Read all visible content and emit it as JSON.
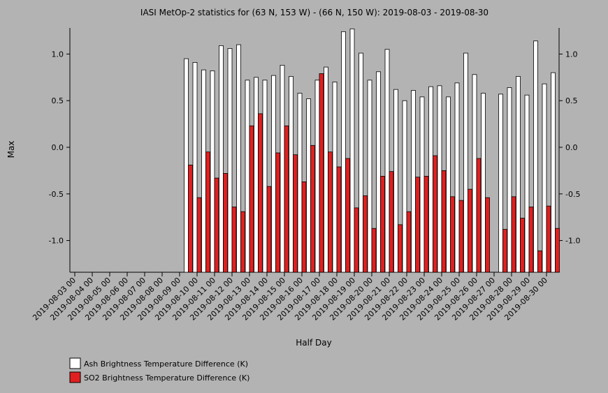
{
  "chart_data": {
    "type": "bar",
    "title": "IASI MetOp-2 statistics for (63 N, 153 W) - (66 N, 150 W): 2019-08-03 - 2019-08-30",
    "x_label": "Half Day",
    "y_label": "Max",
    "categories": [
      "2019-08-03 00",
      null,
      "2019-08-04 00",
      null,
      "2019-08-05 00",
      null,
      "2019-08-06 00",
      null,
      "2019-08-07 00",
      null,
      "2019-08-08 00",
      null,
      "2019-08-09 00",
      null,
      "2019-08-10 00",
      null,
      "2019-08-11 00",
      null,
      "2019-08-12 00",
      null,
      "2019-08-13 00",
      null,
      "2019-08-14 00",
      null,
      "2019-08-15 00",
      null,
      "2019-08-16 00",
      null,
      "2019-08-17 00",
      null,
      "2019-08-18 00",
      null,
      "2019-08-19 00",
      null,
      "2019-08-20 00",
      null,
      "2019-08-21 00",
      null,
      "2019-08-22 00",
      null,
      "2019-08-23 00",
      null,
      "2019-08-24 00",
      null,
      "2019-08-25 00",
      null,
      "2019-08-26 00",
      null,
      "2019-08-27 00",
      null,
      "2019-08-28 00",
      null,
      "2019-08-29 00",
      null,
      "2019-08-30 00",
      null
    ],
    "series": [
      {
        "name": "Ash Brightness Temperature Difference (K)",
        "color": "#ffffff",
        "values": [
          null,
          null,
          null,
          null,
          null,
          null,
          null,
          null,
          null,
          null,
          null,
          null,
          null,
          0.95,
          0.91,
          0.83,
          0.82,
          1.09,
          1.06,
          1.1,
          0.72,
          0.75,
          0.72,
          0.77,
          0.88,
          0.76,
          0.58,
          0.52,
          0.72,
          0.86,
          0.7,
          1.24,
          1.27,
          1.01,
          0.72,
          0.81,
          1.05,
          0.62,
          0.5,
          0.61,
          0.54,
          0.65,
          0.66,
          0.54,
          0.69,
          1.01,
          0.78,
          0.58,
          null,
          0.57,
          0.64,
          0.76,
          0.56,
          1.14,
          0.68,
          0.8
        ]
      },
      {
        "name": "SO2 Brightness Temperature Difference (K)",
        "color": "#e02020",
        "values": [
          null,
          null,
          null,
          null,
          null,
          null,
          null,
          null,
          null,
          null,
          null,
          null,
          null,
          -0.19,
          -0.54,
          -0.05,
          -0.33,
          -0.28,
          -0.64,
          -0.69,
          0.23,
          0.36,
          -0.42,
          -0.06,
          0.23,
          -0.08,
          -0.37,
          0.02,
          0.79,
          -0.05,
          -0.21,
          -0.12,
          -0.65,
          -0.52,
          -0.87,
          -0.31,
          -0.26,
          -0.83,
          -0.69,
          -0.32,
          -0.31,
          -0.09,
          -0.25,
          -0.53,
          -0.57,
          -0.45,
          -0.12,
          -0.54,
          null,
          -0.88,
          -0.53,
          -0.76,
          -0.64,
          -1.11,
          -0.63,
          -0.87
        ]
      }
    ],
    "ylim": [
      -1.34,
      1.28
    ],
    "yticks": [
      {
        "value": -1,
        "label": "-1.0"
      },
      -0.5,
      {
        "value": 0,
        "label": "0.0"
      },
      0.5,
      {
        "value": 1,
        "label": "1.0"
      }
    ],
    "legend": "bottom-left"
  }
}
